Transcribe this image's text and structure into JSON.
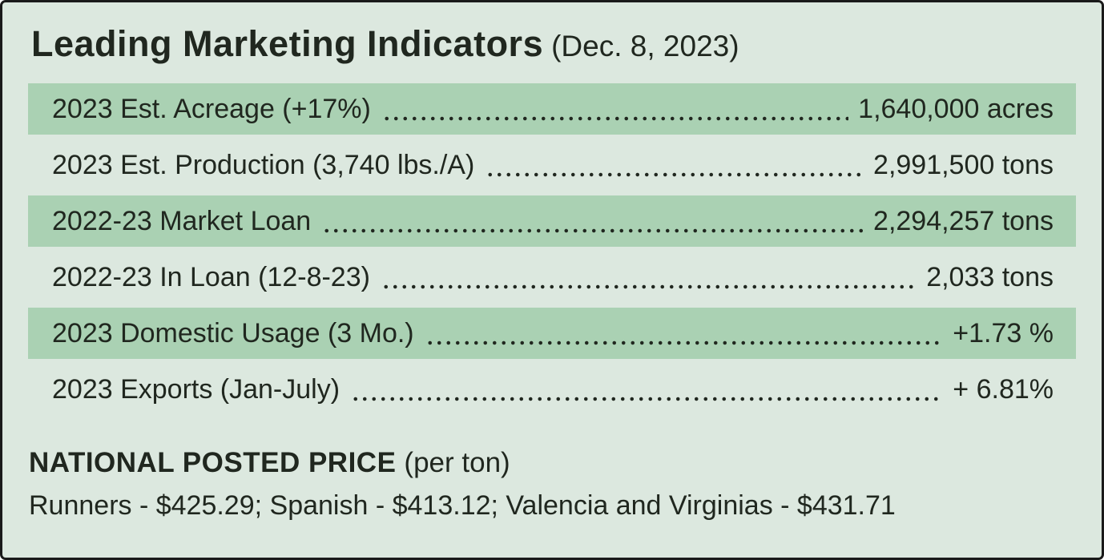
{
  "title": {
    "main": "Leading Marketing Indicators",
    "date": "(Dec. 8, 2023)"
  },
  "indicators": [
    {
      "label": "2023 Est. Acreage (+17%)",
      "value": "1,640,000 acres",
      "shaded": true
    },
    {
      "label": "2023 Est. Production (3,740 lbs./A)",
      "value": "2,991,500 tons",
      "shaded": false
    },
    {
      "label": "2022-23 Market Loan",
      "value": "2,294,257 tons",
      "shaded": true
    },
    {
      "label": "2022-23 In Loan (12-8-23)",
      "value": "2,033 tons",
      "shaded": false
    },
    {
      "label": "2023 Domestic Usage (3 Mo.)",
      "value": "+1.73 %",
      "shaded": true
    },
    {
      "label": "2023 Exports (Jan-July)",
      "value": "+ 6.81%",
      "shaded": false
    }
  ],
  "posted_price": {
    "heading": "NATIONAL POSTED PRICE",
    "unit": "(per ton)",
    "line": "Runners - $425.29; Spanish - $413.12; Valencia and Virginias - $431.71"
  },
  "colors": {
    "background": "#dce8df",
    "row_shaded": "#aad1b3",
    "text": "#20271f",
    "border": "#1a1a1a"
  }
}
